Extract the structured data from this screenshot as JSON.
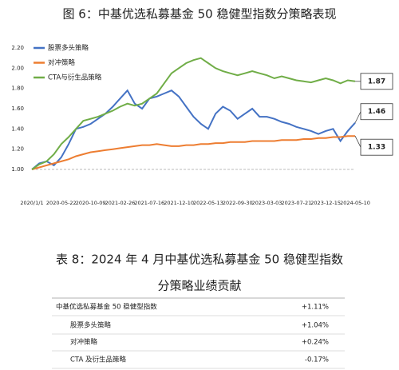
{
  "chart_data": {
    "type": "line",
    "title": "图 6：中基优选私募基金 50 稳健型指数分策略表现",
    "categories": [
      "2020/1/1",
      null,
      null,
      null,
      "2020-05-22",
      null,
      null,
      null,
      "2020-10-09",
      null,
      null,
      null,
      "2021-02-26",
      null,
      null,
      null,
      "2021-07-16",
      null,
      null,
      null,
      "2021-12-10",
      null,
      null,
      null,
      "2022-05-13",
      null,
      null,
      null,
      "2022-09-30",
      null,
      null,
      null,
      "2023-03-03",
      null,
      null,
      null,
      "2023-07-21",
      null,
      null,
      null,
      "2023-12-15",
      null,
      null,
      null,
      "2024-05-10"
    ],
    "series": [
      {
        "name": "股票多头策略",
        "color": "#4472c4",
        "values": [
          1.0,
          1.06,
          1.08,
          1.04,
          1.12,
          1.25,
          1.4,
          1.42,
          1.45,
          1.5,
          1.55,
          1.62,
          1.7,
          1.78,
          1.65,
          1.6,
          1.7,
          1.72,
          1.75,
          1.78,
          1.72,
          1.62,
          1.52,
          1.45,
          1.4,
          1.55,
          1.62,
          1.58,
          1.5,
          1.55,
          1.6,
          1.52,
          1.52,
          1.5,
          1.47,
          1.45,
          1.42,
          1.4,
          1.38,
          1.35,
          1.38,
          1.4,
          1.28,
          1.38,
          1.46
        ]
      },
      {
        "name": "对冲策略",
        "color": "#ed7d31",
        "values": [
          1.0,
          1.02,
          1.04,
          1.06,
          1.08,
          1.1,
          1.13,
          1.15,
          1.17,
          1.18,
          1.19,
          1.2,
          1.21,
          1.22,
          1.23,
          1.24,
          1.24,
          1.25,
          1.24,
          1.23,
          1.23,
          1.24,
          1.24,
          1.25,
          1.25,
          1.26,
          1.26,
          1.27,
          1.27,
          1.27,
          1.28,
          1.28,
          1.28,
          1.28,
          1.29,
          1.29,
          1.29,
          1.3,
          1.3,
          1.31,
          1.31,
          1.32,
          1.32,
          1.33,
          1.33
        ]
      },
      {
        "name": "CTA与衍生品策略",
        "color": "#70ad47",
        "values": [
          1.0,
          1.05,
          1.08,
          1.15,
          1.25,
          1.32,
          1.4,
          1.48,
          1.5,
          1.52,
          1.55,
          1.58,
          1.62,
          1.65,
          1.63,
          1.65,
          1.7,
          1.75,
          1.85,
          1.95,
          2.0,
          2.05,
          2.08,
          2.1,
          2.05,
          2.0,
          1.97,
          1.95,
          1.93,
          1.95,
          1.97,
          1.95,
          1.93,
          1.9,
          1.92,
          1.9,
          1.88,
          1.87,
          1.86,
          1.88,
          1.9,
          1.88,
          1.85,
          1.88,
          1.87
        ]
      }
    ],
    "ylim": [
      1.0,
      2.2
    ],
    "yticks": [
      {
        "value": 1.0,
        "label": "1.00"
      },
      {
        "value": 1.2,
        "label": "1.20"
      },
      {
        "value": 1.4,
        "label": "1.40"
      },
      {
        "value": 1.6,
        "label": "1.60"
      },
      {
        "value": 1.8,
        "label": "1.80"
      },
      {
        "value": 2.0,
        "label": "2.00"
      },
      {
        "value": 2.2,
        "label": "2.20"
      }
    ],
    "grid": false,
    "legend": "top-left"
  },
  "table": {
    "title_lines": [
      "表 8：2024 年 4 月中基优选私募基金 50 稳健型指数",
      "分策略业绩贡献"
    ],
    "rows": [
      [
        "中基优选私募基金 50 稳健型指数",
        "+1.11%"
      ],
      [
        "股票多头策略",
        "+1.04%"
      ],
      [
        "对冲策略",
        "+0.24%"
      ],
      [
        "CTA 及衍生品策略",
        "-0.17%"
      ]
    ]
  }
}
